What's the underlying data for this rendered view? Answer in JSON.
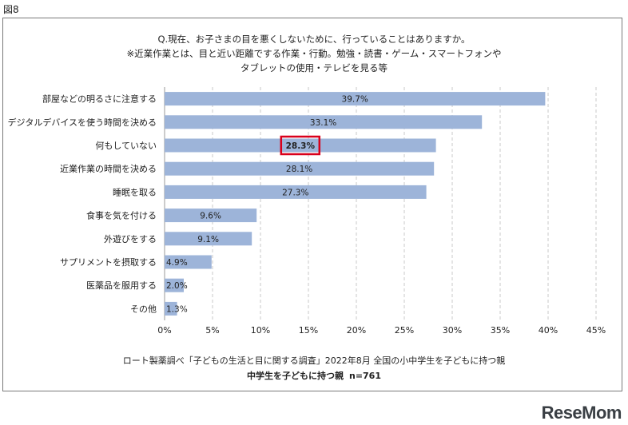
{
  "figure_label": "図8",
  "question": {
    "line1": "Q.現在、お子さまの目を悪くしないために、行っていることはありますか。",
    "line2": "※近業作業とは、目と近い距離でする作業・行動。勉強・読書・ゲーム・スマートフォンや",
    "line3": "タブレットの使用・テレビを見る等"
  },
  "footer": {
    "source": "ロート製薬調べ「子どもの生活と目に関する調査」2022年8月 全国の小中学生を子どもに持つ親",
    "segment": "中学生を子どもに持つ親",
    "sample": "n=761"
  },
  "logo": "ReseMom",
  "colors": {
    "bar": "#9db4d9",
    "highlight": "#d9001b"
  },
  "chart_data": {
    "type": "bar",
    "orientation": "horizontal",
    "categories": [
      "部屋などの明るさに注意する",
      "デジタルデバイスを使う時間を決める",
      "何もしていない",
      "近業作業の時間を決める",
      "睡眠を取る",
      "食事を気を付ける",
      "外遊びをする",
      "サプリメントを摂取する",
      "医薬品を服用する",
      "その他"
    ],
    "values": [
      39.7,
      33.1,
      28.3,
      28.1,
      27.3,
      9.6,
      9.1,
      4.9,
      2.0,
      1.3
    ],
    "value_labels": [
      "39.7%",
      "33.1%",
      "28.3%",
      "28.1%",
      "27.3%",
      "9.6%",
      "9.1%",
      "4.9%",
      "2.0%",
      "1.3%"
    ],
    "highlight_index": 2,
    "xlim": [
      0,
      45
    ],
    "xticks": [
      0,
      5,
      10,
      15,
      20,
      25,
      30,
      35,
      40,
      45
    ],
    "xtick_labels": [
      "0%",
      "5%",
      "10%",
      "15%",
      "20%",
      "25%",
      "30%",
      "35%",
      "40%",
      "45%"
    ],
    "grid": "vertical dashed",
    "title": "",
    "xlabel": "",
    "ylabel": ""
  }
}
